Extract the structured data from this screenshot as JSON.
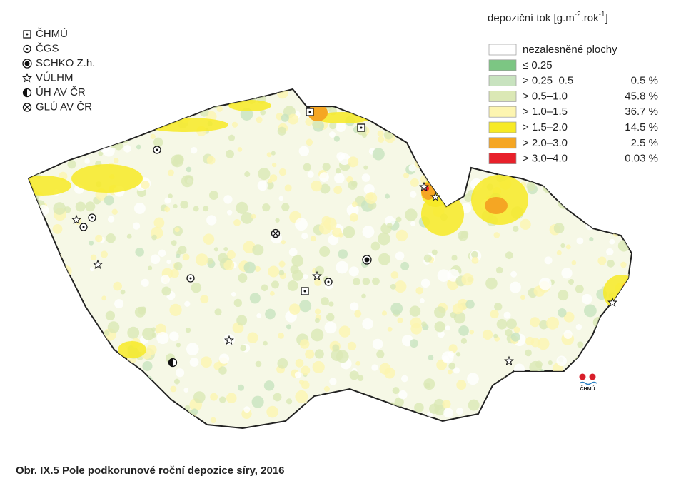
{
  "station_legend": [
    "ČHMÚ",
    "ČGS",
    "SCHKO Z.h.",
    "VÚLHM",
    "ÚH AV ČR",
    "GLÚ AV ČR"
  ],
  "legend_title": [
    "depoziční tok [g.m",
    "-2",
    ".rok",
    "-1",
    "]"
  ],
  "classes": [
    {
      "label": "nezalesněné plochy",
      "color": "#ffffff"
    },
    {
      "label": "≤ 0.25",
      "color": "#7cc683"
    },
    {
      "label": "> 0.25–0.5",
      "share": "0.5 %",
      "color": "#c8e3bf"
    },
    {
      "label": "> 0.5–1.0",
      "share": "45.8 %",
      "color": "#dbe8b5"
    },
    {
      "label": "> 1.0–1.5",
      "share": "36.7 %",
      "color": "#fdf5b0"
    },
    {
      "label": "> 1.5–2.0",
      "share": "14.5 %",
      "color": "#f7ea25"
    },
    {
      "label": "> 2.0–3.0",
      "share": "2.5 %",
      "color": "#f5a623"
    },
    {
      "label": "> 3.0–4.0",
      "share": "0.03 %",
      "color": "#e8202a"
    }
  ],
  "logo": "ČHMÚ",
  "caption": "Obr. IX.5  Pole podkorunové roční depozice síry, 2016"
}
